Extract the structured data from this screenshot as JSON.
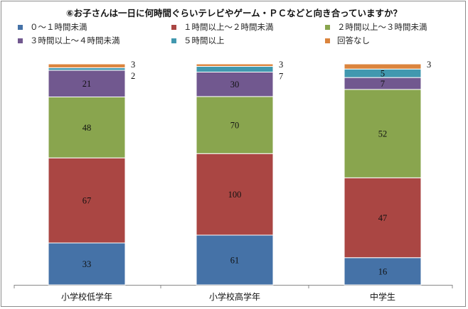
{
  "chart_data": {
    "type": "bar",
    "stacked": true,
    "normalized": true,
    "title": "⑥お子さんは一日に何時間ぐらいテレビやゲーム・ＰＣなどと向き合っていますか？",
    "categories": [
      "小学校低学年",
      "小学校高学年",
      "中学生"
    ],
    "series": [
      {
        "name": "０～１時間未満",
        "color": "#4572a7",
        "values": [
          33,
          61,
          16
        ]
      },
      {
        "name": "１時間以上～２時間未満",
        "color": "#aa4643",
        "values": [
          67,
          100,
          47
        ]
      },
      {
        "name": "２時間以上～３時間未満",
        "color": "#89a54e",
        "values": [
          48,
          70,
          52
        ]
      },
      {
        "name": "３時間以上～４時間未満",
        "color": "#71588f",
        "values": [
          21,
          30,
          7
        ]
      },
      {
        "name": "５時間以上",
        "color": "#4198af",
        "values": [
          2,
          7,
          5
        ]
      },
      {
        "name": "回答なし",
        "color": "#db843d",
        "values": [
          3,
          3,
          3
        ]
      }
    ],
    "legend_position": "top",
    "grid": false
  }
}
